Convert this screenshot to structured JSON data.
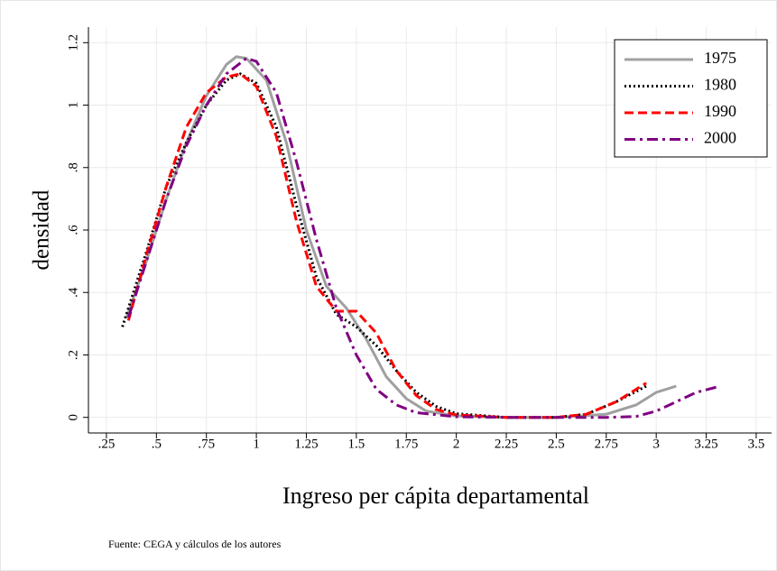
{
  "chart_data": {
    "type": "line",
    "x_label": "Ingreso per cápita departamental",
    "y_label": "densidad",
    "note": "Fuente: CEGA y cálculos de los autores",
    "xlim": [
      0.16,
      3.577
    ],
    "ylim": [
      -0.05,
      1.25
    ],
    "xticks": [
      {
        "value": 0.25,
        "label": ".25"
      },
      {
        "value": 0.5,
        "label": ".5"
      },
      {
        "value": 0.75,
        "label": ".75"
      },
      1,
      1.25,
      1.5,
      1.75,
      2,
      2.25,
      2.5,
      2.75,
      3,
      3.25,
      3.5
    ],
    "yticks": [
      0,
      {
        "value": 0.2,
        "label": ".2"
      },
      {
        "value": 0.4,
        "label": ".4"
      },
      {
        "value": 0.6,
        "label": ".6"
      },
      {
        "value": 0.8,
        "label": ".8"
      },
      1,
      1.2
    ],
    "grid": true,
    "legend": "top-right",
    "series": [
      {
        "name": "1975",
        "color": "#a0a0a0",
        "dash": "solid",
        "x": [
          0.35,
          0.45,
          0.55,
          0.65,
          0.75,
          0.85,
          0.9,
          0.95,
          1.05,
          1.15,
          1.25,
          1.35,
          1.45,
          1.55,
          1.65,
          1.75,
          1.85,
          2.0,
          2.25,
          2.5,
          2.75,
          2.9,
          3.0,
          3.1
        ],
        "values": [
          0.32,
          0.5,
          0.7,
          0.88,
          1.03,
          1.13,
          1.155,
          1.15,
          1.08,
          0.88,
          0.6,
          0.42,
          0.35,
          0.25,
          0.13,
          0.06,
          0.02,
          0.005,
          0,
          0,
          0.01,
          0.04,
          0.08,
          0.1
        ]
      },
      {
        "name": "1980",
        "color": "#000000",
        "dash": "dot",
        "x": [
          0.33,
          0.45,
          0.55,
          0.65,
          0.75,
          0.85,
          0.92,
          1.0,
          1.1,
          1.2,
          1.3,
          1.4,
          1.5,
          1.6,
          1.7,
          1.8,
          1.9,
          2.0,
          2.25,
          2.5,
          2.65,
          2.8,
          2.95
        ],
        "values": [
          0.29,
          0.53,
          0.74,
          0.88,
          1.0,
          1.08,
          1.1,
          1.07,
          0.93,
          0.68,
          0.45,
          0.33,
          0.29,
          0.23,
          0.15,
          0.08,
          0.035,
          0.012,
          0,
          0,
          0.01,
          0.05,
          0.1
        ]
      },
      {
        "name": "1990",
        "color": "#ff0000",
        "dash": "dash",
        "x": [
          0.36,
          0.45,
          0.55,
          0.65,
          0.75,
          0.85,
          0.92,
          1.0,
          1.1,
          1.2,
          1.3,
          1.4,
          1.5,
          1.6,
          1.7,
          1.8,
          1.9,
          2.0,
          2.25,
          2.5,
          2.65,
          2.8,
          2.95
        ],
        "values": [
          0.31,
          0.52,
          0.74,
          0.93,
          1.04,
          1.09,
          1.1,
          1.06,
          0.9,
          0.63,
          0.42,
          0.34,
          0.34,
          0.27,
          0.15,
          0.07,
          0.025,
          0.008,
          0,
          0,
          0.01,
          0.05,
          0.11
        ]
      },
      {
        "name": "2000",
        "color": "#800080",
        "dash": "dashdot",
        "x": [
          0.36,
          0.45,
          0.55,
          0.65,
          0.75,
          0.85,
          0.95,
          1.0,
          1.1,
          1.2,
          1.3,
          1.4,
          1.5,
          1.6,
          1.7,
          1.8,
          2.0,
          2.25,
          2.75,
          2.9,
          3.0,
          3.1,
          3.2,
          3.32
        ],
        "values": [
          0.32,
          0.5,
          0.7,
          0.87,
          1.0,
          1.1,
          1.15,
          1.14,
          1.04,
          0.82,
          0.57,
          0.35,
          0.2,
          0.09,
          0.04,
          0.015,
          0.002,
          0,
          0,
          0.003,
          0.02,
          0.05,
          0.08,
          0.1
        ]
      }
    ]
  }
}
